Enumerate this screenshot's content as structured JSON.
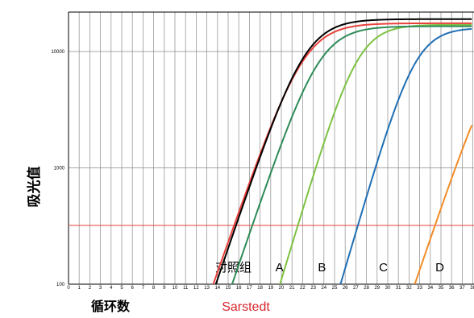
{
  "chart_data": {
    "type": "line",
    "ylabel": "吸光值",
    "xlabel": "循环数",
    "source_label": "Sarstedt",
    "y_scale": "log",
    "ylim": [
      100,
      20000
    ],
    "xlim": [
      0,
      38
    ],
    "y_ticks": [
      {
        "value": 100,
        "label": "100"
      },
      {
        "value": 1000,
        "label": "1000"
      },
      {
        "value": 10000,
        "label": "10000"
      }
    ],
    "x_ticks": [
      "0",
      "1",
      "2",
      "3",
      "4",
      "5",
      "6",
      "7",
      "8",
      "9",
      "10",
      "11",
      "12",
      "13",
      "14",
      "15",
      "16",
      "17",
      "18",
      "19",
      "20",
      "21",
      "22",
      "23",
      "24",
      "25",
      "26",
      "27",
      "28",
      "29",
      "30",
      "31",
      "32",
      "33",
      "34",
      "35",
      "36",
      "37",
      "38"
    ],
    "threshold": {
      "value": 320,
      "color": "#e8413a"
    },
    "grid": true,
    "series": [
      {
        "key": "control_black",
        "label": "",
        "color": "#000000",
        "midpoint": 22.3,
        "steepness": 0.62,
        "plateau": 19000
      },
      {
        "key": "control_red",
        "label": "对照组",
        "color": "#e8413a",
        "midpoint": 22.2,
        "steepness": 0.6,
        "plateau": 17500
      },
      {
        "key": "A",
        "label": "A",
        "color": "#2e8b57",
        "midpoint": 23.6,
        "steepness": 0.62,
        "plateau": 16500
      },
      {
        "key": "B",
        "label": "B",
        "color": "#7cc242",
        "midpoint": 27.2,
        "steepness": 0.7,
        "plateau": 17000
      },
      {
        "key": "C",
        "label": "C",
        "color": "#1f6fb4",
        "midpoint": 32.6,
        "steepness": 0.72,
        "plateau": 16000
      },
      {
        "key": "D",
        "label": "D",
        "color": "#f28c28",
        "midpoint": 40.5,
        "steepness": 0.62,
        "plateau": 14000
      }
    ],
    "curve_labels": [
      {
        "key": "control_red",
        "text": "对照组",
        "x": 17.2
      },
      {
        "key": "A",
        "text": "A",
        "x": 20.2
      },
      {
        "key": "B",
        "text": "B",
        "x": 24.2
      },
      {
        "key": "C",
        "text": "C",
        "x": 30.0
      },
      {
        "key": "D",
        "text": "D",
        "x": 35.3
      }
    ]
  }
}
